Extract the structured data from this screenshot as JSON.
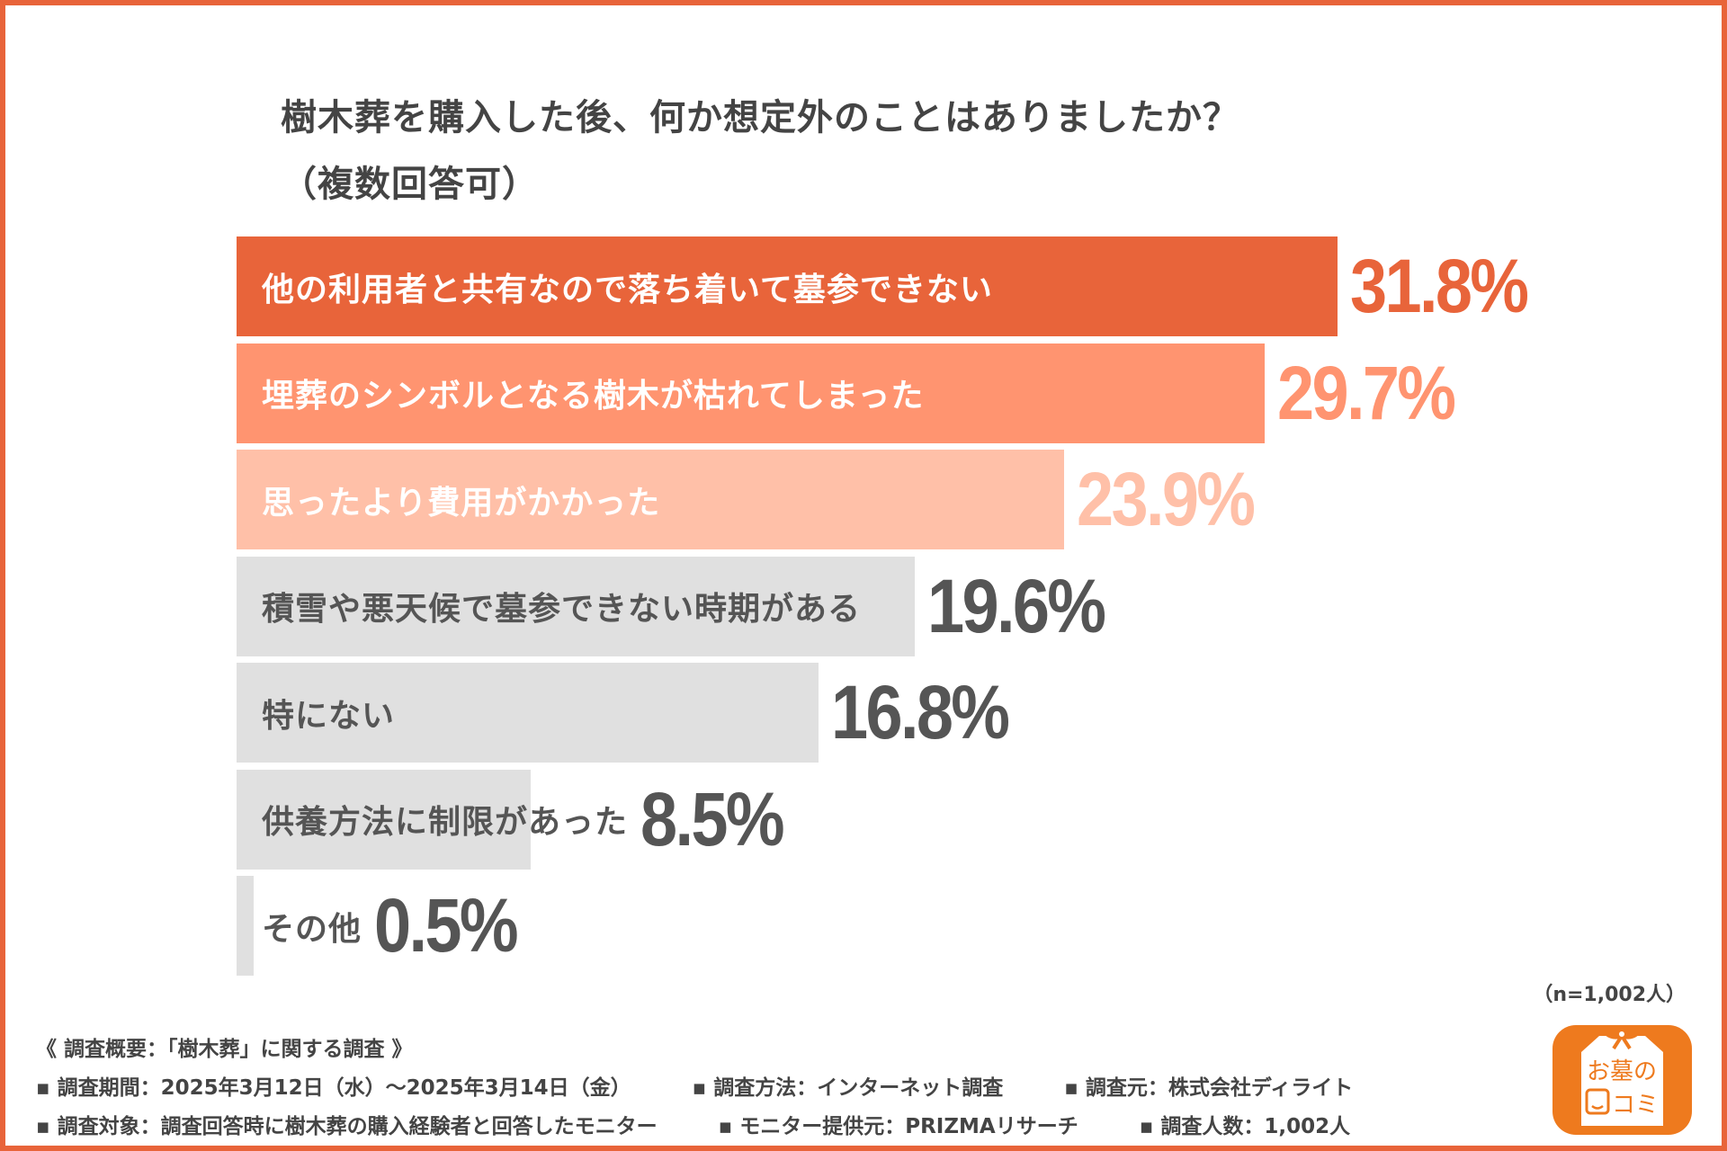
{
  "title_line1": "樹木葬を購入した後、何か想定外のことはありましたか？",
  "title_line2": "（複数回答可）",
  "chart_data": {
    "type": "bar",
    "orientation": "horizontal",
    "title": "樹木葬を購入した後、何か想定外のことはありましたか？（複数回答可）",
    "categories": [
      "他の利用者と共有なので落ち着いて墓参できない",
      "埋葬のシンボルとなる樹木が枯れてしまった",
      "思ったより費用がかかった",
      "積雪や悪天候で墓参できない時期がある",
      "特にない",
      "供養方法に制限があった",
      "その他"
    ],
    "values": [
      31.8,
      29.7,
      23.9,
      19.6,
      16.8,
      8.5,
      0.5
    ],
    "value_labels": [
      "31.8%",
      "29.7%",
      "23.9%",
      "19.6%",
      "16.8%",
      "8.5%",
      "0.5%"
    ],
    "bar_colors": [
      "#E8643A",
      "#FF9470",
      "#FFC0A8",
      "#E0E0E0",
      "#E0E0E0",
      "#E0E0E0",
      "#E0E0E0"
    ],
    "label_colors": [
      "#FFFFFF",
      "#FFFFFF",
      "#FFFFFF",
      "#555555",
      "#555555",
      "#555555",
      "#555555"
    ],
    "value_colors": [
      "#E8643A",
      "#FF9470",
      "#FFC0A8",
      "#555555",
      "#555555",
      "#555555",
      "#555555"
    ],
    "unit": "%",
    "grid": false
  },
  "sample_note": "（n=1,002人）",
  "footer": {
    "heading": "《 調査概要：「樹木葬」に関する調査 》",
    "line1": [
      "▪ 調査期間：2025年3月12日（水）〜2025年3月14日（金）",
      "▪ 調査方法：インターネット調査",
      "▪ 調査元：株式会社ディライト"
    ],
    "line2": [
      "▪ 調査対象：調査回答時に樹木葬の購入経験者と回答したモニター",
      "▪ モニター提供元：PRIZMAリサーチ",
      "▪ 調査人数：1,002人"
    ]
  },
  "logo": {
    "text1": "お墓の",
    "text2": "コミ",
    "color": "#EE7A1E"
  }
}
